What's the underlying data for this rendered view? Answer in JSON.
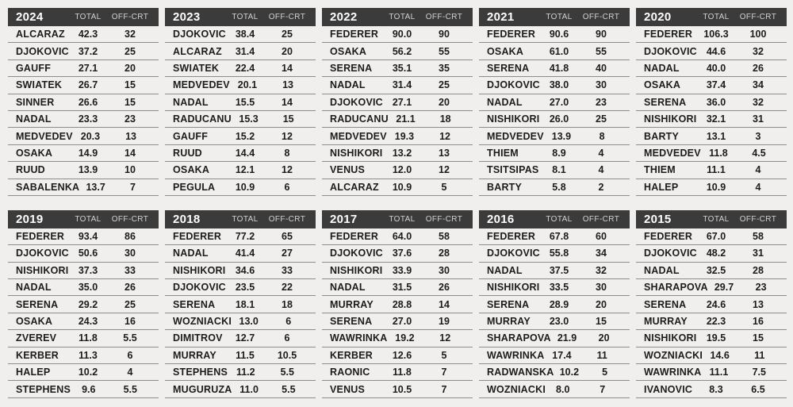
{
  "colors": {
    "page_bg": "#f0efed",
    "header_bg": "#3b3b3b",
    "header_year": "#ffffff",
    "header_col": "#d2d2d2",
    "row_text": "#1c1c1c",
    "divider": "#8c8c8c"
  },
  "chart_data": [
    {
      "type": "table",
      "title": "2024",
      "columns": [
        "TOTAL",
        "OFF-CRT"
      ],
      "rows": [
        {
          "player": "ALCARAZ",
          "total": "42.3",
          "off_crt": "32"
        },
        {
          "player": "DJOKOVIC",
          "total": "37.2",
          "off_crt": "25"
        },
        {
          "player": "GAUFF",
          "total": "27.1",
          "off_crt": "20"
        },
        {
          "player": "SWIATEK",
          "total": "26.7",
          "off_crt": "15"
        },
        {
          "player": "SINNER",
          "total": "26.6",
          "off_crt": "15"
        },
        {
          "player": "NADAL",
          "total": "23.3",
          "off_crt": "23"
        },
        {
          "player": "MEDVEDEV",
          "total": "20.3",
          "off_crt": "13"
        },
        {
          "player": "OSAKA",
          "total": "14.9",
          "off_crt": "14"
        },
        {
          "player": "RUUD",
          "total": "13.9",
          "off_crt": "10"
        },
        {
          "player": "SABALENKA",
          "total": "13.7",
          "off_crt": "7"
        }
      ]
    },
    {
      "type": "table",
      "title": "2023",
      "columns": [
        "TOTAL",
        "OFF-CRT"
      ],
      "rows": [
        {
          "player": "DJOKOVIC",
          "total": "38.4",
          "off_crt": "25"
        },
        {
          "player": "ALCARAZ",
          "total": "31.4",
          "off_crt": "20"
        },
        {
          "player": "SWIATEK",
          "total": "22.4",
          "off_crt": "14"
        },
        {
          "player": "MEDVEDEV",
          "total": "20.1",
          "off_crt": "13"
        },
        {
          "player": "NADAL",
          "total": "15.5",
          "off_crt": "14"
        },
        {
          "player": "RADUCANU",
          "total": "15.3",
          "off_crt": "15"
        },
        {
          "player": "GAUFF",
          "total": "15.2",
          "off_crt": "12"
        },
        {
          "player": "RUUD",
          "total": "14.4",
          "off_crt": "8"
        },
        {
          "player": "OSAKA",
          "total": "12.1",
          "off_crt": "12"
        },
        {
          "player": "PEGULA",
          "total": "10.9",
          "off_crt": "6"
        }
      ]
    },
    {
      "type": "table",
      "title": "2022",
      "columns": [
        "TOTAL",
        "OFF-CRT"
      ],
      "rows": [
        {
          "player": "FEDERER",
          "total": "90.0",
          "off_crt": "90"
        },
        {
          "player": "OSAKA",
          "total": "56.2",
          "off_crt": "55"
        },
        {
          "player": "SERENA",
          "total": "35.1",
          "off_crt": "35"
        },
        {
          "player": "NADAL",
          "total": "31.4",
          "off_crt": "25"
        },
        {
          "player": "DJOKOVIC",
          "total": "27.1",
          "off_crt": "20"
        },
        {
          "player": "RADUCANU",
          "total": "21.1",
          "off_crt": "18"
        },
        {
          "player": "MEDVEDEV",
          "total": "19.3",
          "off_crt": "12"
        },
        {
          "player": "NISHIKORI",
          "total": "13.2",
          "off_crt": "13"
        },
        {
          "player": "VENUS",
          "total": "12.0",
          "off_crt": "12"
        },
        {
          "player": "ALCARAZ",
          "total": "10.9",
          "off_crt": "5"
        }
      ]
    },
    {
      "type": "table",
      "title": "2021",
      "columns": [
        "TOTAL",
        "OFF-CRT"
      ],
      "rows": [
        {
          "player": "FEDERER",
          "total": "90.6",
          "off_crt": "90"
        },
        {
          "player": "OSAKA",
          "total": "61.0",
          "off_crt": "55"
        },
        {
          "player": "SERENA",
          "total": "41.8",
          "off_crt": "40"
        },
        {
          "player": "DJOKOVIC",
          "total": "38.0",
          "off_crt": "30"
        },
        {
          "player": "NADAL",
          "total": "27.0",
          "off_crt": "23"
        },
        {
          "player": "NISHIKORI",
          "total": "26.0",
          "off_crt": "25"
        },
        {
          "player": "MEDVEDEV",
          "total": "13.9",
          "off_crt": "8"
        },
        {
          "player": "THIEM",
          "total": "8.9",
          "off_crt": "4"
        },
        {
          "player": "TSITSIPAS",
          "total": "8.1",
          "off_crt": "4"
        },
        {
          "player": "BARTY",
          "total": "5.8",
          "off_crt": "2"
        }
      ]
    },
    {
      "type": "table",
      "title": "2020",
      "columns": [
        "TOTAL",
        "OFF-CRT"
      ],
      "rows": [
        {
          "player": "FEDERER",
          "total": "106.3",
          "off_crt": "100"
        },
        {
          "player": "DJOKOVIC",
          "total": "44.6",
          "off_crt": "32"
        },
        {
          "player": "NADAL",
          "total": "40.0",
          "off_crt": "26"
        },
        {
          "player": "OSAKA",
          "total": "37.4",
          "off_crt": "34"
        },
        {
          "player": "SERENA",
          "total": "36.0",
          "off_crt": "32"
        },
        {
          "player": "NISHIKORI",
          "total": "32.1",
          "off_crt": "31"
        },
        {
          "player": "BARTY",
          "total": "13.1",
          "off_crt": "3"
        },
        {
          "player": "MEDVEDEV",
          "total": "11.8",
          "off_crt": "4.5"
        },
        {
          "player": "THIEM",
          "total": "11.1",
          "off_crt": "4"
        },
        {
          "player": "HALEP",
          "total": "10.9",
          "off_crt": "4"
        }
      ]
    },
    {
      "type": "table",
      "title": "2019",
      "columns": [
        "TOTAL",
        "OFF-CRT"
      ],
      "rows": [
        {
          "player": "FEDERER",
          "total": "93.4",
          "off_crt": "86"
        },
        {
          "player": "DJOKOVIC",
          "total": "50.6",
          "off_crt": "30"
        },
        {
          "player": "NISHIKORI",
          "total": "37.3",
          "off_crt": "33"
        },
        {
          "player": "NADAL",
          "total": "35.0",
          "off_crt": "26"
        },
        {
          "player": "SERENA",
          "total": "29.2",
          "off_crt": "25"
        },
        {
          "player": "OSAKA",
          "total": "24.3",
          "off_crt": "16"
        },
        {
          "player": "ZVEREV",
          "total": "11.8",
          "off_crt": "5.5"
        },
        {
          "player": "KERBER",
          "total": "11.3",
          "off_crt": "6"
        },
        {
          "player": "HALEP",
          "total": "10.2",
          "off_crt": "4"
        },
        {
          "player": "STEPHENS",
          "total": "9.6",
          "off_crt": "5.5"
        }
      ]
    },
    {
      "type": "table",
      "title": "2018",
      "columns": [
        "TOTAL",
        "OFF-CRT"
      ],
      "rows": [
        {
          "player": "FEDERER",
          "total": "77.2",
          "off_crt": "65"
        },
        {
          "player": "NADAL",
          "total": "41.4",
          "off_crt": "27"
        },
        {
          "player": "NISHIKORI",
          "total": "34.6",
          "off_crt": "33"
        },
        {
          "player": "DJOKOVIC",
          "total": "23.5",
          "off_crt": "22"
        },
        {
          "player": "SERENA",
          "total": "18.1",
          "off_crt": "18"
        },
        {
          "player": "WOZNIACKI",
          "total": "13.0",
          "off_crt": "6"
        },
        {
          "player": "DIMITROV",
          "total": "12.7",
          "off_crt": "6"
        },
        {
          "player": "MURRAY",
          "total": "11.5",
          "off_crt": "10.5"
        },
        {
          "player": "STEPHENS",
          "total": "11.2",
          "off_crt": "5.5"
        },
        {
          "player": "MUGURUZA",
          "total": "11.0",
          "off_crt": "5.5"
        }
      ]
    },
    {
      "type": "table",
      "title": "2017",
      "columns": [
        "TOTAL",
        "OFF-CRT"
      ],
      "rows": [
        {
          "player": "FEDERER",
          "total": "64.0",
          "off_crt": "58"
        },
        {
          "player": "DJOKOVIC",
          "total": "37.6",
          "off_crt": "28"
        },
        {
          "player": "NISHIKORI",
          "total": "33.9",
          "off_crt": "30"
        },
        {
          "player": "NADAL",
          "total": "31.5",
          "off_crt": "26"
        },
        {
          "player": "MURRAY",
          "total": "28.8",
          "off_crt": "14"
        },
        {
          "player": "SERENA",
          "total": "27.0",
          "off_crt": "19"
        },
        {
          "player": "WAWRINKA",
          "total": "19.2",
          "off_crt": "12"
        },
        {
          "player": "KERBER",
          "total": "12.6",
          "off_crt": "5"
        },
        {
          "player": "RAONIC",
          "total": "11.8",
          "off_crt": "7"
        },
        {
          "player": "VENUS",
          "total": "10.5",
          "off_crt": "7"
        }
      ]
    },
    {
      "type": "table",
      "title": "2016",
      "columns": [
        "TOTAL",
        "OFF-CRT"
      ],
      "rows": [
        {
          "player": "FEDERER",
          "total": "67.8",
          "off_crt": "60"
        },
        {
          "player": "DJOKOVIC",
          "total": "55.8",
          "off_crt": "34"
        },
        {
          "player": "NADAL",
          "total": "37.5",
          "off_crt": "32"
        },
        {
          "player": "NISHIKORI",
          "total": "33.5",
          "off_crt": "30"
        },
        {
          "player": "SERENA",
          "total": "28.9",
          "off_crt": "20"
        },
        {
          "player": "MURRAY",
          "total": "23.0",
          "off_crt": "15"
        },
        {
          "player": "SHARAPOVA",
          "total": "21.9",
          "off_crt": "20"
        },
        {
          "player": "WAWRINKA",
          "total": "17.4",
          "off_crt": "11"
        },
        {
          "player": "RADWANSKA",
          "total": "10.2",
          "off_crt": "5"
        },
        {
          "player": "WOZNIACKI",
          "total": "8.0",
          "off_crt": "7"
        }
      ]
    },
    {
      "type": "table",
      "title": "2015",
      "columns": [
        "TOTAL",
        "OFF-CRT"
      ],
      "rows": [
        {
          "player": "FEDERER",
          "total": "67.0",
          "off_crt": "58"
        },
        {
          "player": "DJOKOVIC",
          "total": "48.2",
          "off_crt": "31"
        },
        {
          "player": "NADAL",
          "total": "32.5",
          "off_crt": "28"
        },
        {
          "player": "SHARAPOVA",
          "total": "29.7",
          "off_crt": "23"
        },
        {
          "player": "SERENA",
          "total": "24.6",
          "off_crt": "13"
        },
        {
          "player": "MURRAY",
          "total": "22.3",
          "off_crt": "16"
        },
        {
          "player": "NISHIKORI",
          "total": "19.5",
          "off_crt": "15"
        },
        {
          "player": "WOZNIACKI",
          "total": "14.6",
          "off_crt": "11"
        },
        {
          "player": "WAWRINKA",
          "total": "11.1",
          "off_crt": "7.5"
        },
        {
          "player": "IVANOVIC",
          "total": "8.3",
          "off_crt": "6.5"
        }
      ]
    }
  ]
}
